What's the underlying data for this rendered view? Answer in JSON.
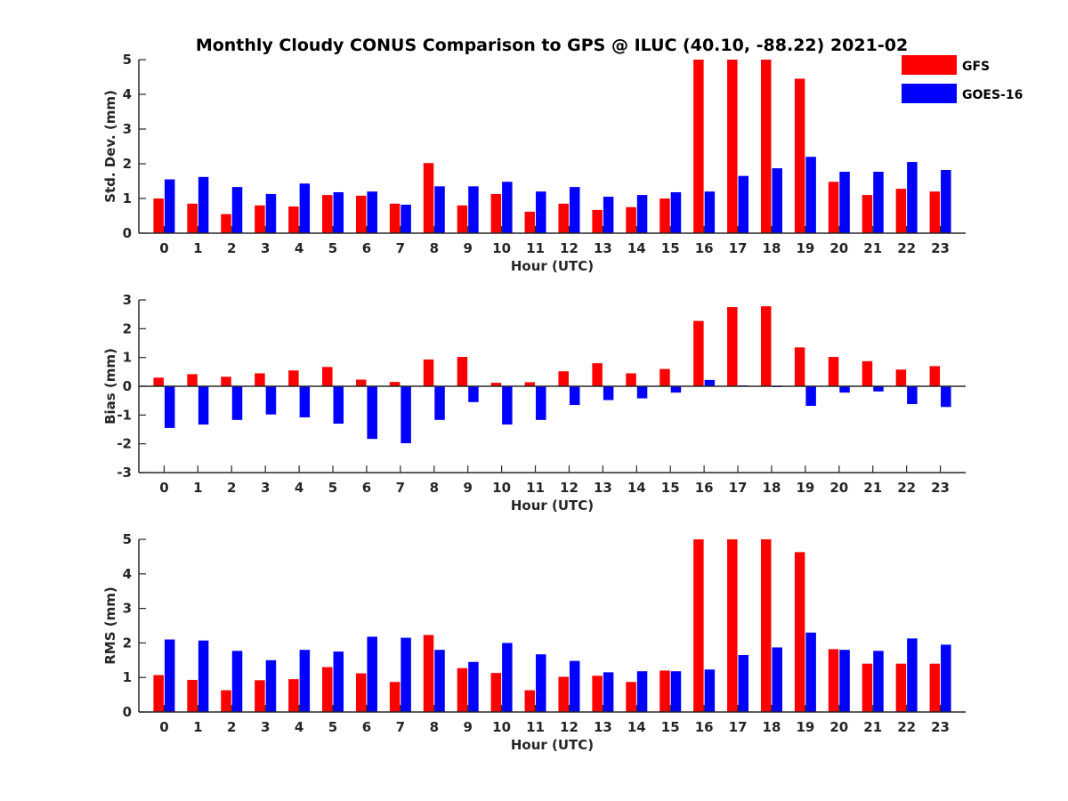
{
  "colors": {
    "gfs": "#ff0000",
    "goes": "#0000ff",
    "axis": "#262626"
  },
  "legend": {
    "gfs_label": "GFS",
    "goes_label": "GOES-16",
    "position": "top-right"
  },
  "chart_data": {
    "title": "Monthly Cloudy CONUS Comparison to GPS @ ILUC (40.10, -88.22) 2021-02",
    "type": "bar",
    "categories": [
      "0",
      "1",
      "2",
      "3",
      "4",
      "5",
      "6",
      "7",
      "8",
      "9",
      "10",
      "11",
      "12",
      "13",
      "14",
      "15",
      "16",
      "17",
      "18",
      "19",
      "20",
      "21",
      "22",
      "23"
    ],
    "panels": [
      {
        "id": "stddev",
        "ylabel": "Std. Dev. (mm)",
        "xlabel": "Hour (UTC)",
        "ylim": [
          0,
          5
        ],
        "yticks": [
          0,
          1,
          2,
          3,
          4,
          5
        ],
        "series": [
          {
            "name": "GFS",
            "values": [
              1.0,
              0.85,
              0.55,
              0.8,
              0.77,
              1.1,
              1.08,
              0.85,
              2.02,
              0.8,
              1.13,
              0.62,
              0.85,
              0.67,
              0.75,
              1.0,
              5.0,
              5.0,
              5.0,
              4.45,
              1.48,
              1.1,
              1.28,
              1.2
            ]
          },
          {
            "name": "GOES-16",
            "values": [
              1.55,
              1.62,
              1.33,
              1.13,
              1.43,
              1.18,
              1.2,
              0.82,
              1.35,
              1.35,
              1.48,
              1.2,
              1.33,
              1.05,
              1.1,
              1.18,
              1.2,
              1.65,
              1.87,
              2.2,
              1.77,
              1.77,
              2.05,
              1.82
            ]
          }
        ]
      },
      {
        "id": "bias",
        "ylabel": "Bias (mm)",
        "xlabel": "Hour (UTC)",
        "ylim": [
          -3,
          3
        ],
        "yticks": [
          -3,
          -2,
          -1,
          0,
          1,
          2,
          3
        ],
        "series": [
          {
            "name": "GFS",
            "values": [
              0.3,
              0.42,
              0.33,
              0.45,
              0.55,
              0.67,
              0.23,
              0.15,
              0.93,
              1.02,
              0.12,
              0.14,
              0.52,
              0.8,
              0.45,
              0.6,
              2.27,
              2.75,
              2.78,
              1.35,
              1.02,
              0.87,
              0.58,
              0.7
            ]
          },
          {
            "name": "GOES-16",
            "values": [
              -1.45,
              -1.33,
              -1.17,
              -0.98,
              -1.08,
              -1.3,
              -1.83,
              -1.98,
              -1.17,
              -0.55,
              -1.33,
              -1.17,
              -0.65,
              -0.48,
              -0.42,
              -0.22,
              0.22,
              0.03,
              -0.03,
              -0.68,
              -0.22,
              -0.18,
              -0.62,
              -0.72
            ]
          }
        ]
      },
      {
        "id": "rms",
        "ylabel": "RMS (mm)",
        "xlabel": "Hour (UTC)",
        "ylim": [
          0,
          5
        ],
        "yticks": [
          0,
          1,
          2,
          3,
          4,
          5
        ],
        "series": [
          {
            "name": "GFS",
            "values": [
              1.07,
              0.93,
              0.63,
              0.92,
              0.95,
              1.3,
              1.12,
              0.87,
              2.23,
              1.27,
              1.13,
              0.63,
              1.02,
              1.05,
              0.87,
              1.2,
              5.0,
              5.0,
              5.0,
              4.63,
              1.82,
              1.4,
              1.4,
              1.4
            ]
          },
          {
            "name": "GOES-16",
            "values": [
              2.1,
              2.07,
              1.77,
              1.5,
              1.8,
              1.75,
              2.18,
              2.15,
              1.8,
              1.45,
              2.0,
              1.67,
              1.48,
              1.15,
              1.18,
              1.18,
              1.23,
              1.65,
              1.87,
              2.3,
              1.8,
              1.77,
              2.13,
              1.95
            ]
          }
        ]
      }
    ]
  }
}
